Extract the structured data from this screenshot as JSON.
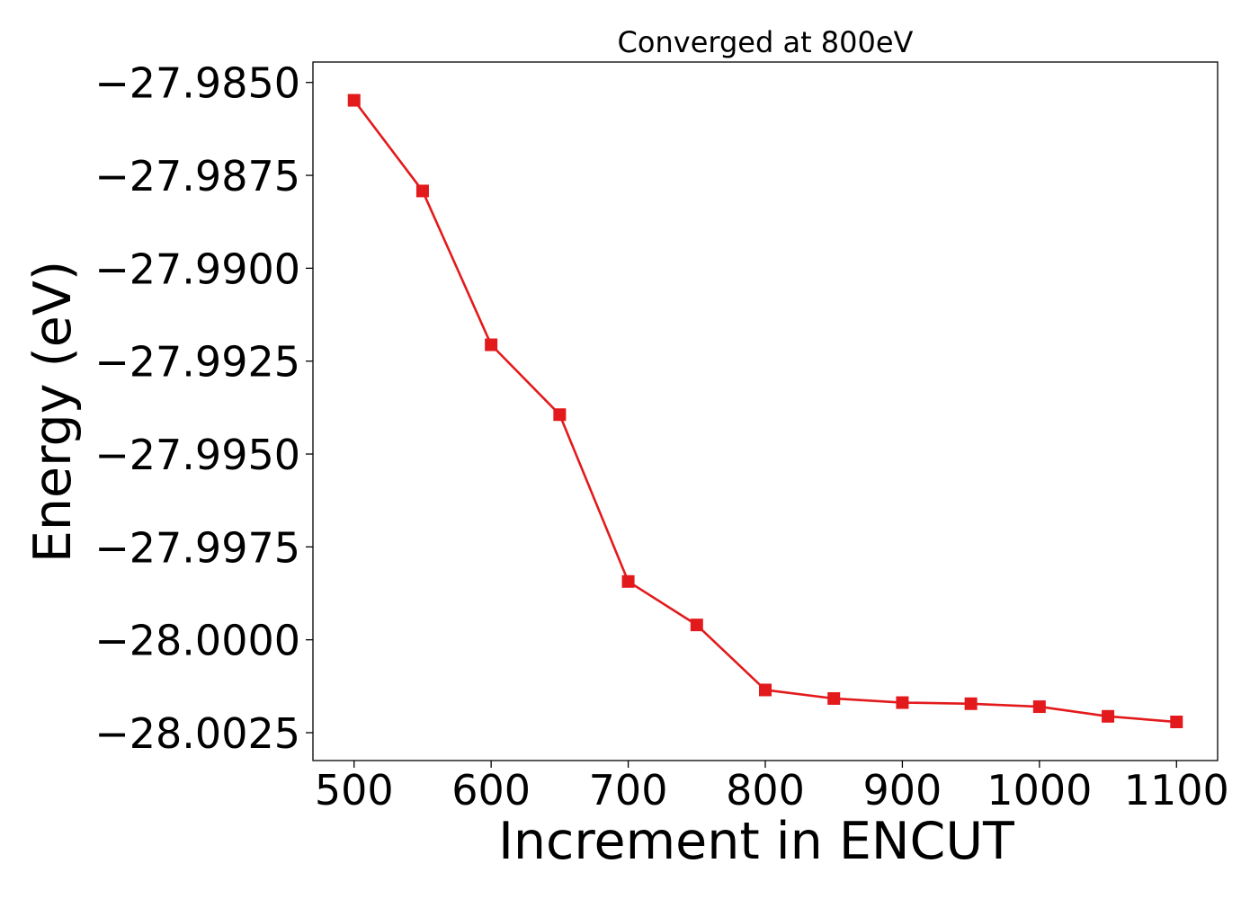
{
  "chart_data": {
    "type": "line",
    "title": "Converged at 800eV",
    "xlabel": "Increment in ENCUT",
    "ylabel": "Energy (eV)",
    "x": [
      500,
      550,
      600,
      650,
      700,
      750,
      800,
      850,
      900,
      950,
      1000,
      1050,
      1100
    ],
    "series": [
      {
        "values": [
          -27.98548,
          -27.98792,
          -27.99206,
          -27.99394,
          -27.99843,
          -27.9996,
          -28.00135,
          -28.00158,
          -28.00169,
          -28.00172,
          -28.0018,
          -28.00206,
          -28.00221
        ],
        "color": "#e31a1c",
        "marker": "square"
      }
    ],
    "xlim": [
      470,
      1130
    ],
    "ylim": [
      -28.00325,
      -27.98445
    ],
    "xticks": [
      500,
      600,
      700,
      800,
      900,
      1000,
      1100
    ],
    "xtick_labels": [
      "500",
      "600",
      "700",
      "800",
      "900",
      "1000",
      "1100"
    ],
    "yticks": [
      -27.985,
      -27.9875,
      -27.99,
      -27.9925,
      -27.995,
      -27.9975,
      -28.0,
      -28.0025
    ],
    "ytick_labels": [
      "−27.9850",
      "−27.9875",
      "−27.9900",
      "−27.9925",
      "−27.9950",
      "−27.9975",
      "−28.0000",
      "−28.0025"
    ],
    "grid": false,
    "legend": "none"
  }
}
